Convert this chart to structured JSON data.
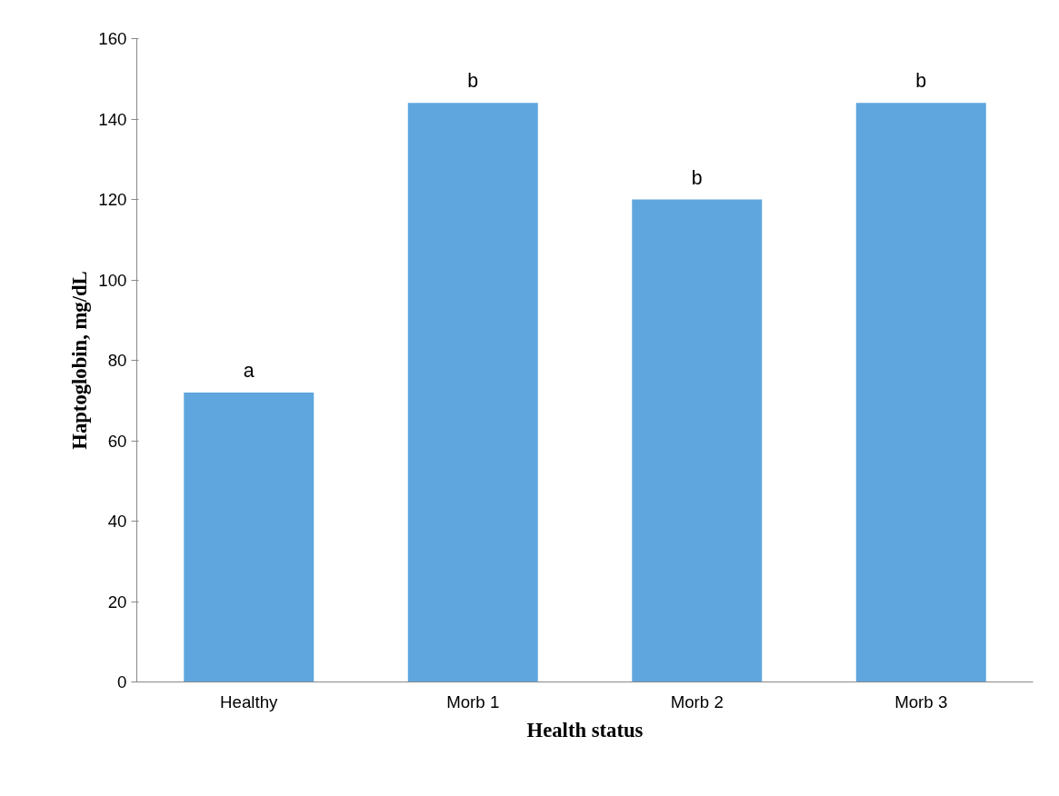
{
  "chart_data": {
    "type": "bar",
    "xlabel": "Health status",
    "ylabel": "Haptoglobin, mg/dL",
    "categories": [
      "Healthy",
      "Morb 1",
      "Morb 2",
      "Morb 3"
    ],
    "values": [
      72,
      144,
      120,
      144
    ],
    "color": "#5fa6de",
    "ylim": [
      0,
      160
    ],
    "yticks": [
      0,
      20,
      40,
      60,
      80,
      100,
      120,
      140,
      160
    ],
    "grid": false,
    "annotations": [
      {
        "text": "a",
        "x": "Healthy",
        "y": 72
      },
      {
        "text": "b",
        "x": "Morb 1",
        "y": 144
      },
      {
        "text": "b",
        "x": "Morb 2",
        "y": 120
      },
      {
        "text": "b",
        "x": "Morb 3",
        "y": 144
      }
    ]
  }
}
